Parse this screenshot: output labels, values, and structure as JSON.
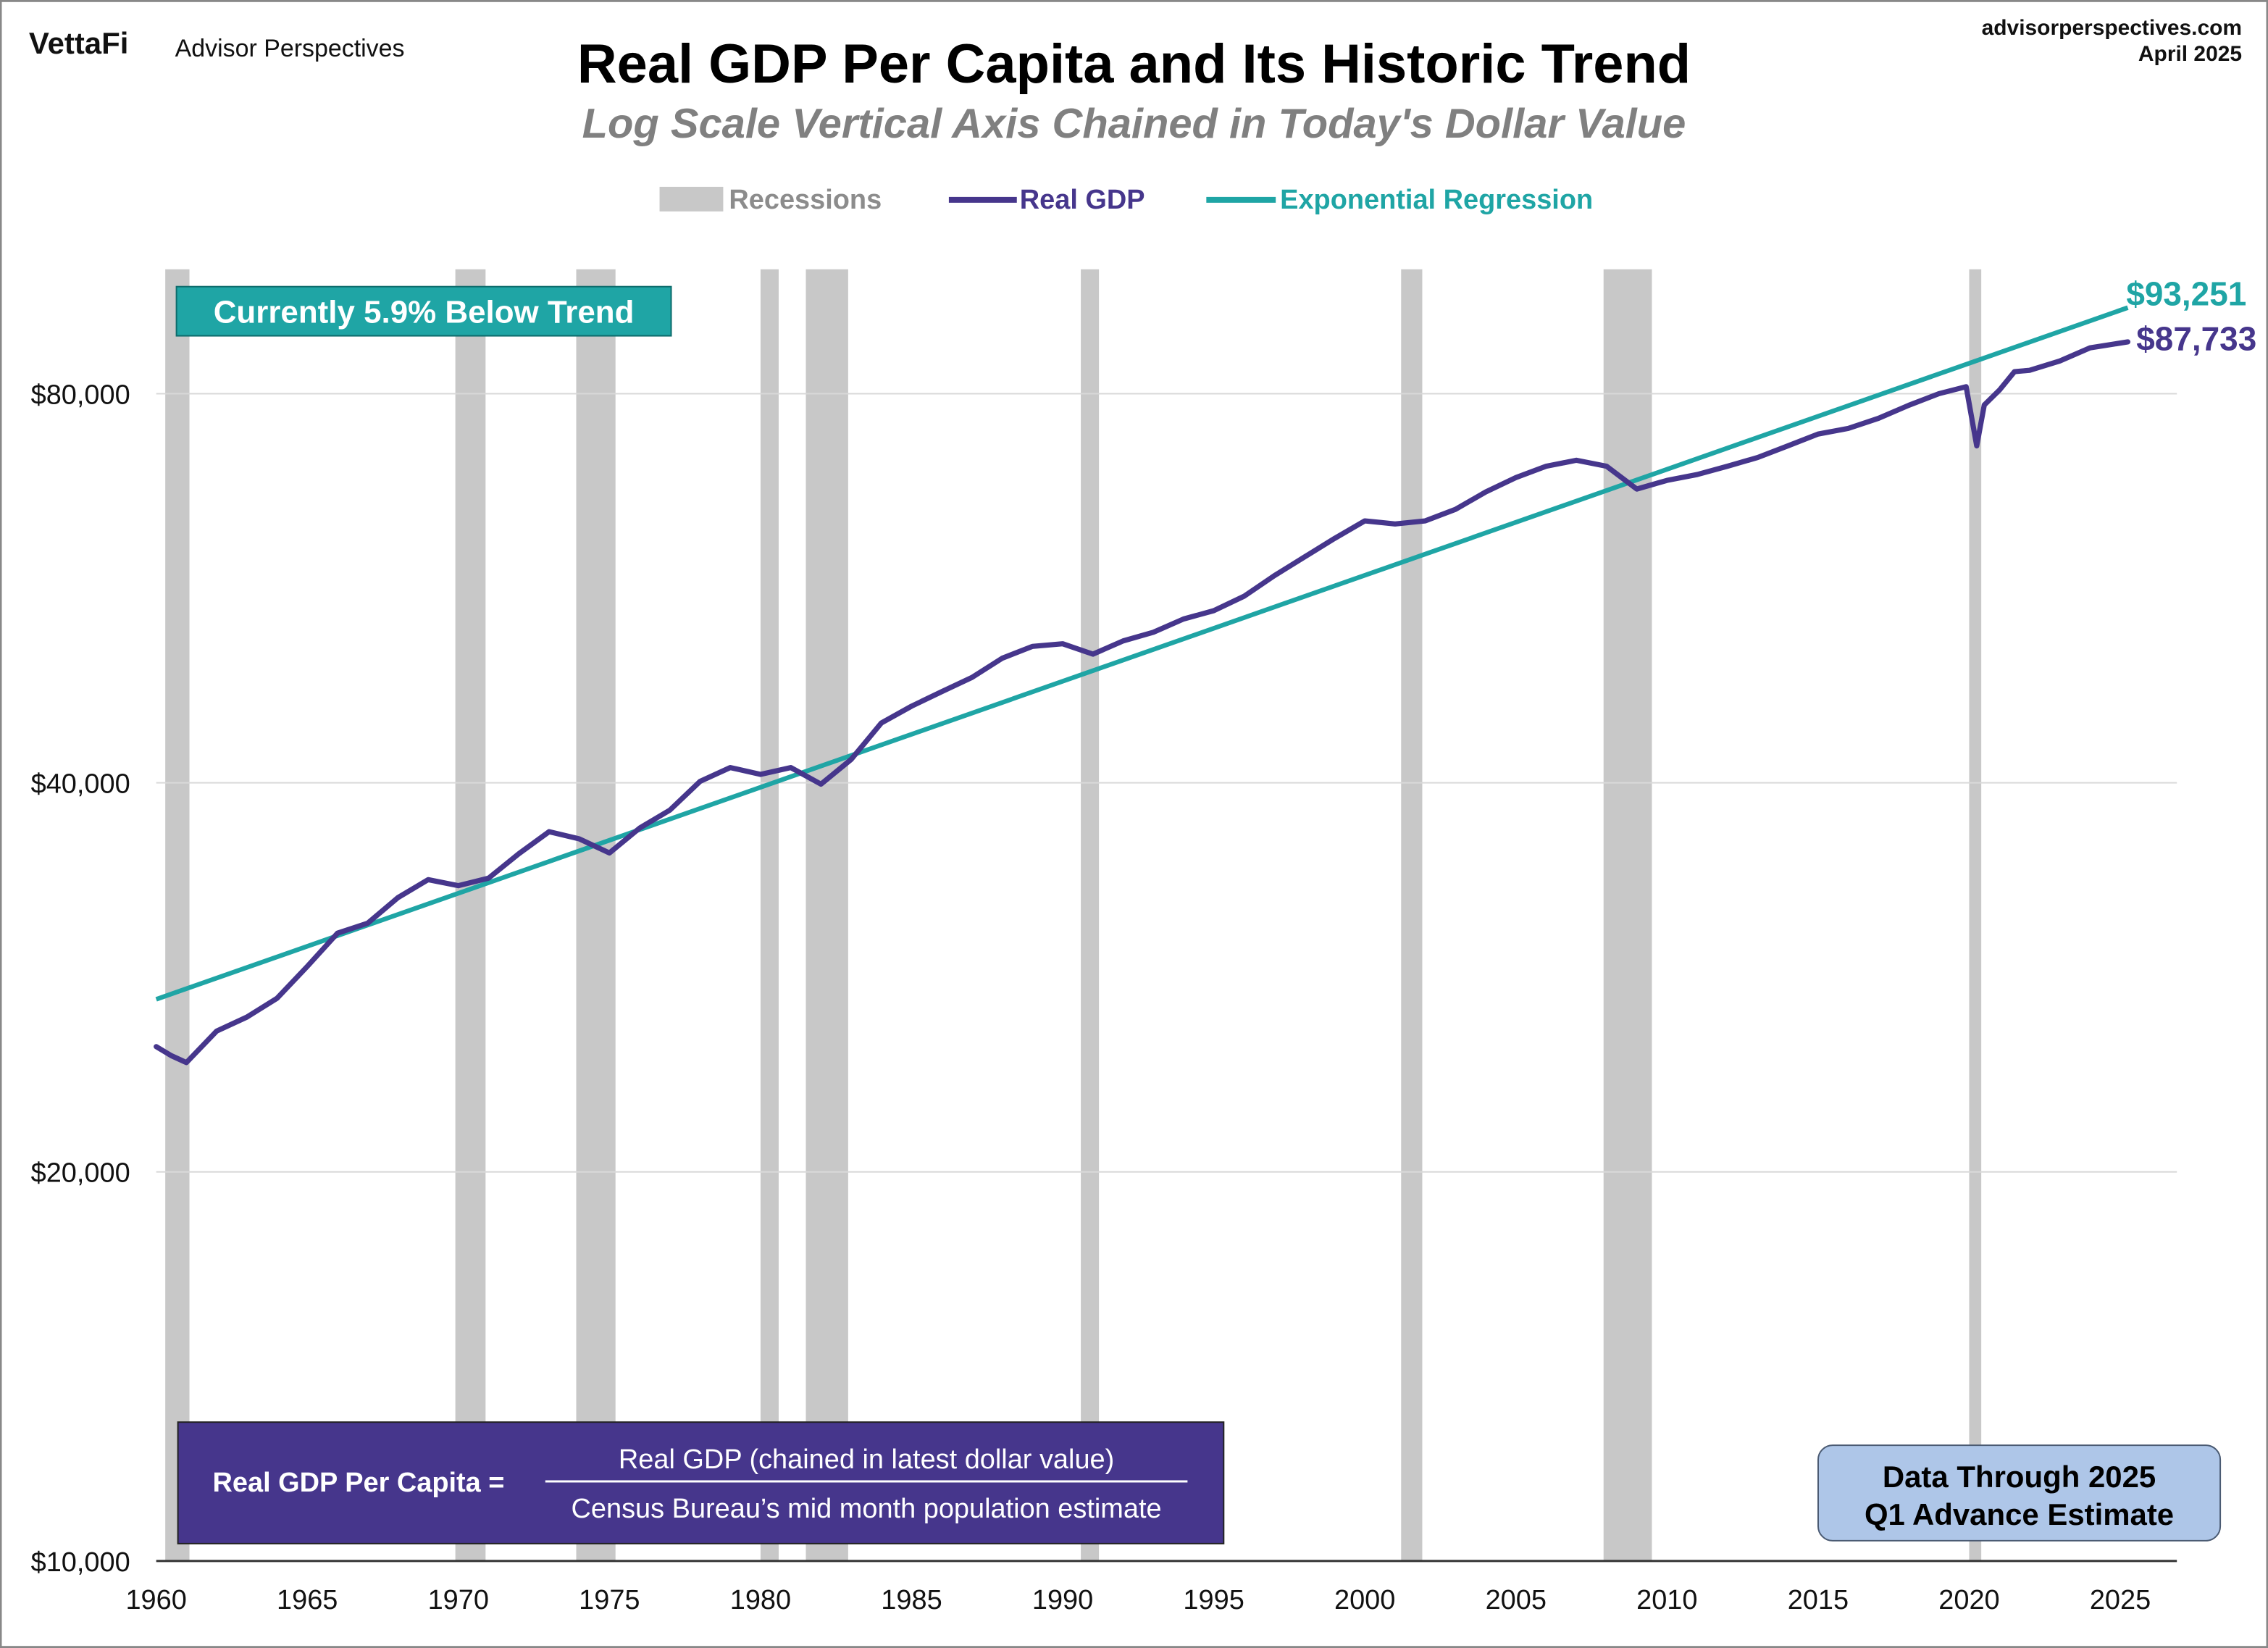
{
  "header": {
    "logo": "VettaFi",
    "brand": "Advisor Perspectives",
    "site": "advisorperspectives.com",
    "date": "April 2025"
  },
  "chart_data": {
    "type": "line",
    "title": "Real GDP Per Capita and Its Historic Trend",
    "subtitle": "Log Scale Vertical Axis Chained in Today's Dollar Value",
    "y_scale": "log",
    "ylim": [
      10000,
      100000
    ],
    "xlim": [
      1960,
      2026.8
    ],
    "grid": "horizontal",
    "legend_position": "top-center",
    "legend": [
      "Recessions",
      "Real GDP",
      "Exponential Regression"
    ],
    "colors": {
      "recession": "#c8c8c8",
      "real_gdp": "#46368c",
      "trend": "#1fa5a5",
      "grid": "#d9d9d9"
    },
    "x_ticks": [
      "1960",
      "1965",
      "1970",
      "1975",
      "1980",
      "1985",
      "1990",
      "1995",
      "2000",
      "2005",
      "2010",
      "2015",
      "2020",
      "2025"
    ],
    "x_tick_values": [
      1960,
      1965,
      1970,
      1975,
      1980,
      1985,
      1990,
      1995,
      2000,
      2005,
      2010,
      2015,
      2020,
      2025
    ],
    "y_ticks": [
      "$10,000",
      "$20,000",
      "$40,000",
      "$80,000"
    ],
    "y_tick_values": [
      10000,
      20000,
      40000,
      80000
    ],
    "recessions": [
      [
        1960.3,
        1961.1
      ],
      [
        1969.9,
        1970.9
      ],
      [
        1973.9,
        1975.2
      ],
      [
        1980.0,
        1980.6
      ],
      [
        1981.5,
        1982.9
      ],
      [
        1990.6,
        1991.2
      ],
      [
        2001.2,
        2001.9
      ],
      [
        2007.9,
        2009.5
      ],
      [
        2020.0,
        2020.4
      ]
    ],
    "series": [
      {
        "name": "Real GDP",
        "x": [
          1960,
          1960.5,
          1961,
          1962,
          1963,
          1964,
          1965,
          1966,
          1967,
          1968,
          1969,
          1970,
          1971,
          1972,
          1973,
          1974,
          1975,
          1976,
          1977,
          1978,
          1979,
          1980,
          1981,
          1982,
          1983,
          1984,
          1985,
          1986,
          1987,
          1988,
          1989,
          1990,
          1991,
          1992,
          1993,
          1994,
          1995,
          1996,
          1997,
          1998,
          1999,
          2000,
          2001,
          2002,
          2003,
          2004,
          2005,
          2006,
          2007,
          2008,
          2009,
          2010,
          2011,
          2012,
          2013,
          2014,
          2015,
          2016,
          2017,
          2018,
          2019,
          2019.9,
          2020.25,
          2020.5,
          2021,
          2021.5,
          2022,
          2023,
          2024,
          2025.25
        ],
        "values": [
          25000,
          24600,
          24300,
          25700,
          26350,
          27250,
          28840,
          30600,
          31150,
          32600,
          33660,
          33300,
          33750,
          35250,
          36660,
          36200,
          35300,
          36900,
          38100,
          40100,
          41100,
          40600,
          41100,
          39900,
          41700,
          44500,
          45850,
          47050,
          48260,
          49940,
          51000,
          51240,
          50300,
          51500,
          52300,
          53550,
          54350,
          55760,
          57840,
          59800,
          61820,
          63780,
          63430,
          63780,
          65100,
          67150,
          68900,
          70300,
          71050,
          70300,
          67500,
          68550,
          69270,
          70300,
          71400,
          72900,
          74450,
          75200,
          76570,
          78360,
          80000,
          81000,
          72900,
          78400,
          80500,
          83200,
          83400,
          84800,
          86800,
          87733
        ]
      },
      {
        "name": "Exponential Regression",
        "x": [
          1960,
          2025.25
        ],
        "values": [
          27200,
          93251
        ]
      }
    ],
    "end_labels": {
      "trend": "$93,251",
      "real_gdp": "$87,733"
    },
    "annotation": "Currently 5.9% Below Trend",
    "formula": {
      "lhs": "Real GDP Per Capita =",
      "numerator": "Real GDP (chained in latest dollar value)",
      "denominator": "Census Bureau’s mid month population estimate"
    },
    "data_note": [
      "Data Through 2025",
      "Q1 Advance Estimate"
    ]
  }
}
